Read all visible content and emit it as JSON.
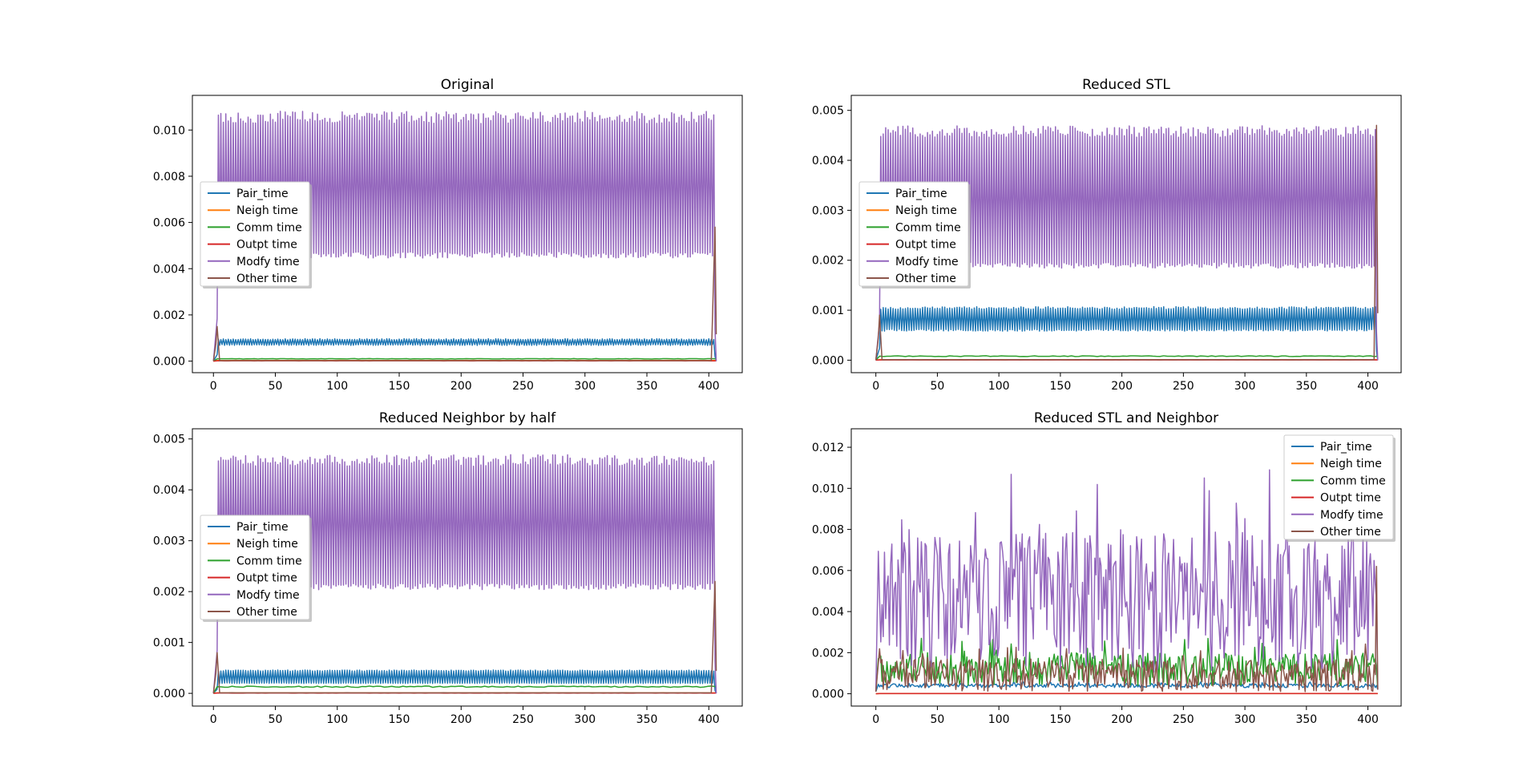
{
  "figure": {
    "background": "#ffffff"
  },
  "series_colors": {
    "Pair_time": "#1f77b4",
    "Neigh time": "#ff7f0e",
    "Comm  time": "#2ca02c",
    "Outpt time": "#d62728",
    "Modfy time": "#9467bd",
    "Other time": "#8c564b"
  },
  "chart_data": [
    {
      "type": "line",
      "title": "Original",
      "xlabel": "",
      "ylabel": "",
      "xlim": [
        -17,
        427
      ],
      "ylim": [
        -0.0005,
        0.0115
      ],
      "xticks": [
        0,
        50,
        100,
        150,
        200,
        250,
        300,
        350,
        400
      ],
      "xtick_labels": [
        "0",
        "50",
        "100",
        "150",
        "200",
        "250",
        "300",
        "350",
        "400"
      ],
      "yticks": [
        0,
        0.002,
        0.004,
        0.006,
        0.008,
        0.01
      ],
      "ytick_labels": [
        "0.000",
        "0.002",
        "0.004",
        "0.006",
        "0.008",
        "0.010"
      ],
      "legend": {
        "position": "center-left"
      },
      "x": [
        0,
        406
      ],
      "series": [
        {
          "name": "Pair_time",
          "color": "#1f77b4",
          "pattern": "oscillating",
          "hi": 0.00095,
          "lo": 0.0007,
          "x_end": 406
        },
        {
          "name": "Neigh time",
          "color": "#ff7f0e",
          "pattern": "flat",
          "value": 3e-05,
          "x_end": 406
        },
        {
          "name": "Comm  time",
          "color": "#2ca02c",
          "pattern": "flat",
          "value": 0.0001,
          "x_end": 406
        },
        {
          "name": "Outpt time",
          "color": "#d62728",
          "pattern": "flat",
          "value": 1e-05,
          "x_end": 406
        },
        {
          "name": "Modfy time",
          "color": "#9467bd",
          "pattern": "oscillating",
          "hi": 0.0106,
          "lo": 0.0046,
          "x_end": 406
        },
        {
          "name": "Other time",
          "color": "#8c564b",
          "pattern": "flat",
          "value": 2e-05,
          "spike_start": 0.0015,
          "spike_end": 0.0058,
          "x_end": 406
        }
      ]
    },
    {
      "type": "line",
      "title": "Reduced  STL",
      "xlabel": "",
      "ylabel": "",
      "xlim": [
        -20,
        427
      ],
      "ylim": [
        -0.00025,
        0.0053
      ],
      "xticks": [
        0,
        50,
        100,
        150,
        200,
        250,
        300,
        350,
        400
      ],
      "xtick_labels": [
        "0",
        "50",
        "100",
        "150",
        "200",
        "250",
        "300",
        "350",
        "400"
      ],
      "yticks": [
        0,
        0.001,
        0.002,
        0.003,
        0.004,
        0.005
      ],
      "ytick_labels": [
        "0.000",
        "0.001",
        "0.002",
        "0.003",
        "0.004",
        "0.005"
      ],
      "legend": {
        "position": "center-left"
      },
      "x": [
        0,
        408
      ],
      "series": [
        {
          "name": "Pair_time",
          "color": "#1f77b4",
          "pattern": "oscillating",
          "hi": 0.00105,
          "lo": 0.0006,
          "x_end": 408
        },
        {
          "name": "Neigh time",
          "color": "#ff7f0e",
          "pattern": "flat",
          "value": 1e-05,
          "x_end": 408
        },
        {
          "name": "Comm  time",
          "color": "#2ca02c",
          "pattern": "flat",
          "value": 8e-05,
          "x_end": 408
        },
        {
          "name": "Outpt time",
          "color": "#d62728",
          "pattern": "flat",
          "value": 5e-06,
          "x_end": 408
        },
        {
          "name": "Modfy time",
          "color": "#9467bd",
          "pattern": "oscillating",
          "hi": 0.0046,
          "lo": 0.0019,
          "x_end": 408
        },
        {
          "name": "Other time",
          "color": "#8c564b",
          "pattern": "flat",
          "value": 1e-05,
          "spike_start": 0.0009,
          "spike_end": 0.0047,
          "x_end": 408
        }
      ]
    },
    {
      "type": "line",
      "title": "Reduced  Neighbor by half",
      "xlabel": "",
      "ylabel": "",
      "xlim": [
        -17,
        427
      ],
      "ylim": [
        -0.00025,
        0.0052
      ],
      "xticks": [
        0,
        50,
        100,
        150,
        200,
        250,
        300,
        350,
        400
      ],
      "xtick_labels": [
        "0",
        "50",
        "100",
        "150",
        "200",
        "250",
        "300",
        "350",
        "400"
      ],
      "yticks": [
        0,
        0.001,
        0.002,
        0.003,
        0.004,
        0.005
      ],
      "ytick_labels": [
        "0.000",
        "0.001",
        "0.002",
        "0.003",
        "0.004",
        "0.005"
      ],
      "legend": {
        "position": "center-left"
      },
      "x": [
        0,
        406
      ],
      "series": [
        {
          "name": "Pair_time",
          "color": "#1f77b4",
          "pattern": "oscillating",
          "hi": 0.00045,
          "lo": 0.0002,
          "x_end": 406
        },
        {
          "name": "Neigh time",
          "color": "#ff7f0e",
          "pattern": "flat",
          "value": 1e-05,
          "x_end": 406
        },
        {
          "name": "Comm  time",
          "color": "#2ca02c",
          "pattern": "flat",
          "value": 0.00013,
          "x_end": 406
        },
        {
          "name": "Outpt time",
          "color": "#d62728",
          "pattern": "flat",
          "value": 5e-06,
          "x_end": 406
        },
        {
          "name": "Modfy time",
          "color": "#9467bd",
          "pattern": "oscillating",
          "hi": 0.0046,
          "lo": 0.0021,
          "x_end": 406
        },
        {
          "name": "Other time",
          "color": "#8c564b",
          "pattern": "flat",
          "value": 1e-05,
          "spike_start": 0.0008,
          "spike_end": 0.0022,
          "x_end": 406
        }
      ]
    },
    {
      "type": "line",
      "title": "Reduced  STL and Neighbor",
      "xlabel": "",
      "ylabel": "",
      "xlim": [
        -20,
        427
      ],
      "ylim": [
        -0.0006,
        0.0129
      ],
      "xticks": [
        0,
        50,
        100,
        150,
        200,
        250,
        300,
        350,
        400
      ],
      "xtick_labels": [
        "0",
        "50",
        "100",
        "150",
        "200",
        "250",
        "300",
        "350",
        "400"
      ],
      "yticks": [
        0,
        0.002,
        0.004,
        0.006,
        0.008,
        0.01,
        0.012
      ],
      "ytick_labels": [
        "0.000",
        "0.002",
        "0.004",
        "0.006",
        "0.008",
        "0.010",
        "0.012"
      ],
      "legend": {
        "position": "upper-right"
      },
      "x": [
        0,
        408
      ],
      "series": [
        {
          "name": "Pair_time",
          "color": "#1f77b4",
          "pattern": "noisy",
          "mean": 0.0004,
          "amp": 0.0001,
          "x_end": 408
        },
        {
          "name": "Neigh time",
          "color": "#ff7f0e",
          "pattern": "flat",
          "value": 1e-05,
          "x_end": 408
        },
        {
          "name": "Comm  time",
          "color": "#2ca02c",
          "pattern": "noisy",
          "mean": 0.0012,
          "amp": 0.0008,
          "x_end": 408
        },
        {
          "name": "Outpt time",
          "color": "#d62728",
          "pattern": "flat",
          "value": 1e-05,
          "x_end": 408
        },
        {
          "name": "Modfy time",
          "color": "#9467bd",
          "pattern": "noisy",
          "mean": 0.0045,
          "amp": 0.0035,
          "x_end": 408
        },
        {
          "name": "Other time",
          "color": "#8c564b",
          "pattern": "noisy",
          "mean": 0.0009,
          "amp": 0.0008,
          "spike_end": 0.0062,
          "x_end": 408
        }
      ]
    }
  ]
}
